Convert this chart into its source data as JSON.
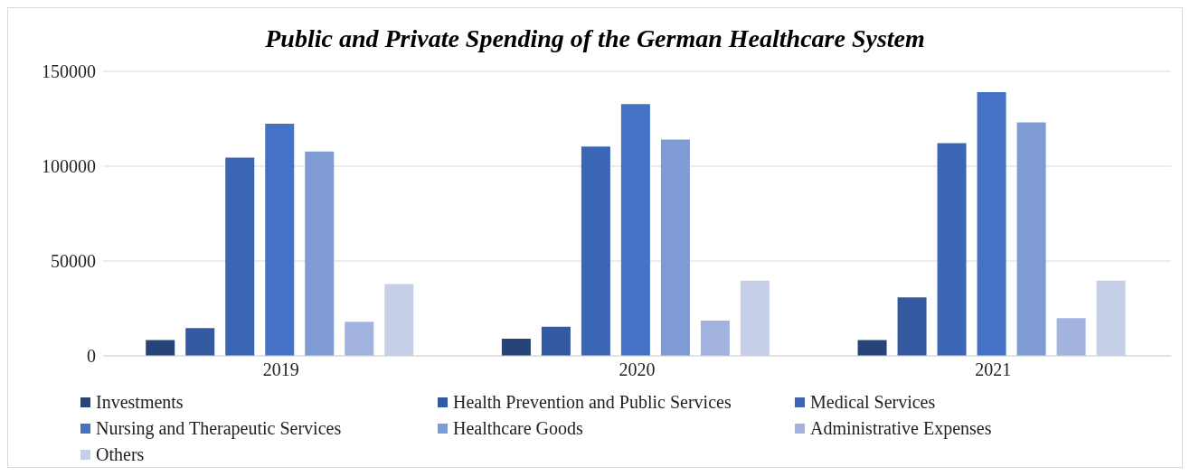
{
  "chart_data": {
    "type": "bar",
    "title": "Public and Private Spending of the German Healthcare System",
    "categories": [
      "2019",
      "2020",
      "2021"
    ],
    "series": [
      {
        "name": "Investments",
        "color": "#264478",
        "values": [
          8300,
          9000,
          8300
        ]
      },
      {
        "name": "Health Prevention and Public Services",
        "color": "#335aa1",
        "values": [
          14700,
          15400,
          30800
        ]
      },
      {
        "name": "Medical Services",
        "color": "#3a66b5",
        "values": [
          104500,
          110300,
          112200
        ]
      },
      {
        "name": "Nursing and Therapeutic Services",
        "color": "#4472c4",
        "values": [
          122400,
          132700,
          139100
        ]
      },
      {
        "name": "Healthcare Goods",
        "color": "#7f9bd3",
        "values": [
          107700,
          114100,
          123100
        ]
      },
      {
        "name": "Administrative Expenses",
        "color": "#a2b3df",
        "values": [
          18000,
          18600,
          19900
        ]
      },
      {
        "name": "Others",
        "color": "#c5cfe8",
        "values": [
          37800,
          39700,
          39700
        ]
      }
    ],
    "ylim": [
      0,
      150000
    ],
    "yticks": [
      0,
      50000,
      100000,
      150000
    ],
    "grid": "y",
    "legend": "bottom"
  }
}
